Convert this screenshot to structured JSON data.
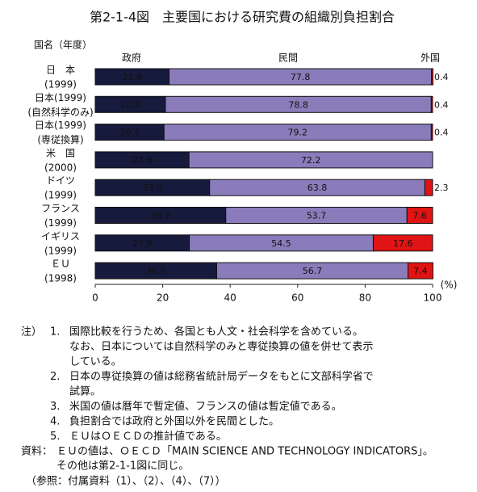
{
  "chart_data": {
    "type": "stacked-barh",
    "title": "第2-1-4図　主要国における研究費の組織別負担割合",
    "category_header": "国名（年度）",
    "categories": [
      [
        "日　本",
        "(1999)"
      ],
      [
        "日本(1999)",
        "(自然科学のみ)"
      ],
      [
        "日本(1999)",
        "(専従換算)"
      ],
      [
        "米　国",
        "(2000)"
      ],
      [
        "ドイツ",
        "(1999)"
      ],
      [
        "フランス",
        "(1999)"
      ],
      [
        "イギリス",
        "(1999)"
      ],
      [
        "ＥＵ",
        "(1998)"
      ]
    ],
    "series": [
      {
        "name": "政府",
        "color": "#161a3c",
        "label_color": "#d8d8e8",
        "values": [
          21.9,
          20.8,
          20.4,
          27.8,
          33.9,
          38.7,
          27.9,
          36.0
        ],
        "value_labels": [
          "21.9",
          "20.8",
          "20.4",
          "27.8",
          "33.9",
          "38.7",
          "27.9",
          "36.0"
        ]
      },
      {
        "name": "民間",
        "color": "#8a7cba",
        "label_color": "#111111",
        "values": [
          77.8,
          78.8,
          79.2,
          72.2,
          63.8,
          53.7,
          54.5,
          56.7
        ],
        "value_labels": [
          "77.8",
          "78.8",
          "79.2",
          "72.2",
          "63.8",
          "53.7",
          "54.5",
          "56.7"
        ]
      },
      {
        "name": "外国",
        "color": "#e01414",
        "label_color": "#ffffff",
        "values": [
          0.4,
          0.4,
          0.4,
          null,
          2.3,
          7.6,
          17.6,
          7.4
        ],
        "value_labels": [
          "0.4",
          "0.4",
          "0.4",
          null,
          "2.3",
          "7.6",
          "17.6",
          "7.4"
        ]
      }
    ],
    "xlim": [
      0,
      100
    ],
    "xticks": [
      0,
      20,
      40,
      60,
      80,
      100
    ],
    "x_label": "(%)"
  },
  "notes": {
    "label": "注）",
    "items": [
      {
        "num": "1.",
        "lines": [
          "国際比較を行うため、各国とも人文・社会科学を含めている。",
          "なお、日本については自然科学のみと専従換算の値を併せて表示",
          "している。"
        ]
      },
      {
        "num": "2.",
        "lines": [
          "日本の専従換算の値は総務省統計局データをもとに文部科学省で",
          "試算。"
        ]
      },
      {
        "num": "3.",
        "lines": [
          "米国の値は暦年で暫定値、フランスの値は暫定値である。"
        ]
      },
      {
        "num": "4.",
        "lines": [
          "負担割合では政府と外国以外を民間とした。"
        ]
      },
      {
        "num": "5.",
        "lines": [
          "ＥＵはＯＥＣＤの推計値である。"
        ]
      }
    ]
  },
  "source": {
    "label": "資料：",
    "lines": [
      "ＥＵの値は、ＯＥＣＤ「MAIN SCIENCE AND TECHNOLOGY INDICATORS」。",
      "その他は第2-1-1図に同じ。"
    ]
  },
  "reference": "（参照：付属資料（1）、（2）、（4）、（7））"
}
